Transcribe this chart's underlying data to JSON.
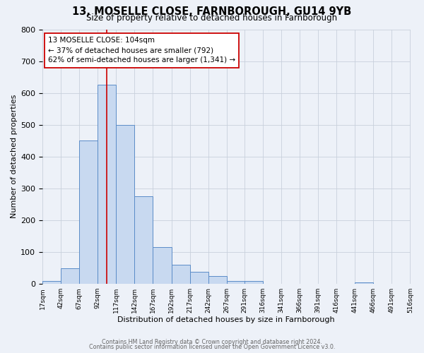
{
  "title1": "13, MOSELLE CLOSE, FARNBOROUGH, GU14 9YB",
  "title2": "Size of property relative to detached houses in Farnborough",
  "xlabel": "Distribution of detached houses by size in Farnborough",
  "ylabel": "Number of detached properties",
  "bin_edges": [
    17,
    42,
    67,
    92,
    117,
    142,
    167,
    192,
    217,
    242,
    267,
    291,
    316,
    341,
    366,
    391,
    416,
    441,
    466,
    491,
    516
  ],
  "counts": [
    10,
    50,
    450,
    625,
    500,
    275,
    115,
    60,
    37,
    25,
    10,
    10,
    0,
    0,
    0,
    0,
    0,
    5,
    0,
    0
  ],
  "bar_face_color": "#c8d9f0",
  "bar_edge_color": "#5b8cc8",
  "bar_linewidth": 0.7,
  "vline_x": 104,
  "vline_color": "#cc0000",
  "vline_linewidth": 1.2,
  "ylim": [
    0,
    800
  ],
  "yticks": [
    0,
    100,
    200,
    300,
    400,
    500,
    600,
    700,
    800
  ],
  "grid_color": "#c8d0dc",
  "bg_color": "#edf1f8",
  "annotation_title": "13 MOSELLE CLOSE: 104sqm",
  "annotation_line1": "← 37% of detached houses are smaller (792)",
  "annotation_line2": "62% of semi-detached houses are larger (1,341) →",
  "annotation_box_color": "#ffffff",
  "annotation_box_edge": "#cc0000",
  "footer1": "Contains HM Land Registry data © Crown copyright and database right 2024.",
  "footer2": "Contains public sector information licensed under the Open Government Licence v3.0.",
  "tick_labels": [
    "17sqm",
    "42sqm",
    "67sqm",
    "92sqm",
    "117sqm",
    "142sqm",
    "167sqm",
    "192sqm",
    "217sqm",
    "242sqm",
    "267sqm",
    "291sqm",
    "316sqm",
    "341sqm",
    "366sqm",
    "391sqm",
    "416sqm",
    "441sqm",
    "466sqm",
    "491sqm",
    "516sqm"
  ],
  "title1_fontsize": 10.5,
  "title2_fontsize": 8.5,
  "xlabel_fontsize": 8,
  "ylabel_fontsize": 8,
  "tick_fontsize": 6.5,
  "ytick_fontsize": 8,
  "ann_fontsize": 7.5,
  "footer_fontsize": 5.8
}
